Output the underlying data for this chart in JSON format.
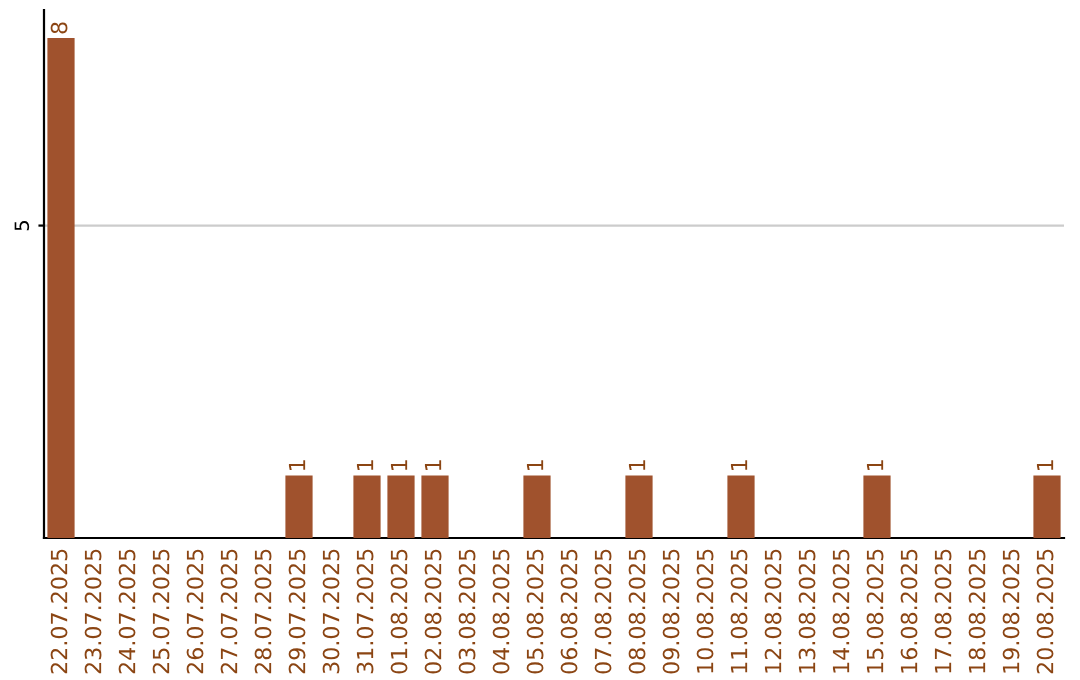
{
  "chart_data": {
    "type": "bar",
    "categories": [
      "22.07.2025",
      "23.07.2025",
      "24.07.2025",
      "25.07.2025",
      "26.07.2025",
      "27.07.2025",
      "28.07.2025",
      "29.07.2025",
      "30.07.2025",
      "31.07.2025",
      "01.08.2025",
      "02.08.2025",
      "03.08.2025",
      "04.08.2025",
      "05.08.2025",
      "06.08.2025",
      "07.08.2025",
      "08.08.2025",
      "09.08.2025",
      "10.08.2025",
      "11.08.2025",
      "12.08.2025",
      "13.08.2025",
      "14.08.2025",
      "15.08.2025",
      "16.08.2025",
      "17.08.2025",
      "18.08.2025",
      "19.08.2025",
      "20.08.2025"
    ],
    "values": [
      8,
      0,
      0,
      0,
      0,
      0,
      0,
      1,
      0,
      1,
      1,
      1,
      0,
      0,
      1,
      0,
      0,
      1,
      0,
      0,
      1,
      0,
      0,
      0,
      1,
      0,
      0,
      0,
      0,
      1
    ],
    "value_labels": [
      "8",
      null,
      null,
      null,
      null,
      null,
      null,
      "1",
      null,
      "1",
      "1",
      "1",
      null,
      null,
      "1",
      null,
      null,
      "1",
      null,
      null,
      "1",
      null,
      null,
      null,
      "1",
      null,
      null,
      null,
      null,
      "1"
    ],
    "color": "#a0522d",
    "ylim": [
      0,
      8.45
    ],
    "yticks": [
      5
    ],
    "grid": "y",
    "legend": false
  }
}
